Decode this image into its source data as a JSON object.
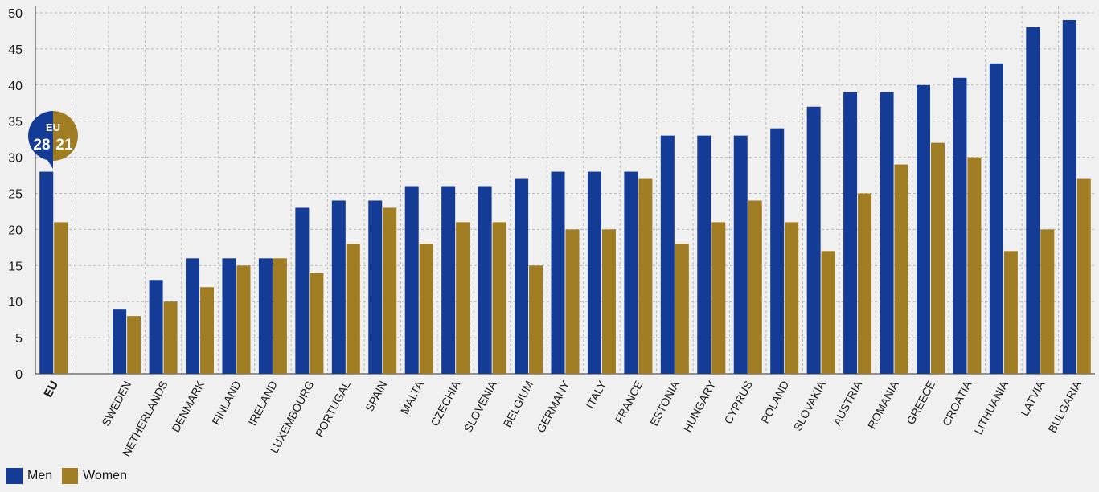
{
  "chart_data": {
    "type": "bar",
    "categories": [
      "EU",
      "",
      "SWEDEN",
      "NETHERLANDS",
      "DENMARK",
      "FINLAND",
      "IRELAND",
      "LUXEMBOURG",
      "PORTUGAL",
      "SPAIN",
      "MALTA",
      "CZECHIA",
      "SLOVENIA",
      "BELGIUM",
      "GERMANY",
      "ITALY",
      "FRANCE",
      "ESTONIA",
      "HUNGARY",
      "CYPRUS",
      "POLAND",
      "SLOVAKIA",
      "AUSTRIA",
      "ROMANIA",
      "GREECE",
      "CROATIA",
      "LITHUANIA",
      "LATVIA",
      "BULGARIA"
    ],
    "series": [
      {
        "name": "Men",
        "color": "#143b96",
        "values": [
          28,
          null,
          9,
          13,
          16,
          16,
          16,
          23,
          24,
          24,
          26,
          26,
          26,
          27,
          28,
          28,
          28,
          33,
          33,
          33,
          34,
          37,
          39,
          39,
          40,
          41,
          43,
          48,
          49
        ]
      },
      {
        "name": "Women",
        "color": "#a07d22",
        "values": [
          21,
          null,
          8,
          10,
          12,
          15,
          16,
          14,
          18,
          23,
          18,
          21,
          21,
          15,
          20,
          20,
          27,
          18,
          21,
          24,
          21,
          17,
          25,
          29,
          32,
          30,
          17,
          20,
          27
        ]
      }
    ],
    "ylim": [
      0,
      50
    ],
    "yticks": [
      "0",
      "5",
      "10",
      "15",
      "20",
      "25",
      "30",
      "35",
      "40",
      "45",
      "50"
    ],
    "grid": "dashed vertical separators and horizontal gridlines",
    "legend_position": "bottom-left",
    "callout": {
      "label": "EU",
      "men": "28",
      "women": "21"
    }
  },
  "legend": {
    "men_label": "Men",
    "women_label": "Women"
  }
}
